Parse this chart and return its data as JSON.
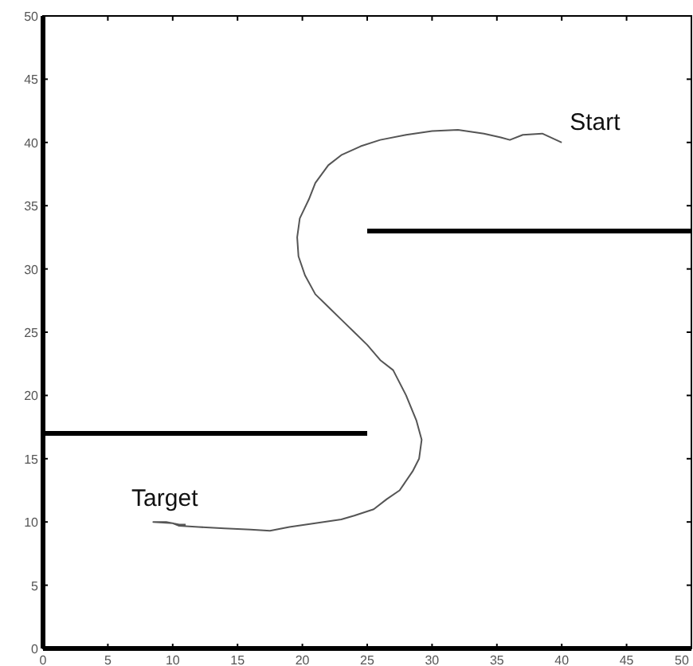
{
  "chart_data": {
    "type": "line",
    "xlim": [
      0,
      50
    ],
    "ylim": [
      0,
      50
    ],
    "xticks": [
      0,
      5,
      10,
      15,
      20,
      25,
      30,
      35,
      40,
      45,
      50
    ],
    "yticks": [
      0,
      5,
      10,
      15,
      20,
      25,
      30,
      35,
      40,
      45,
      50
    ],
    "grid": false,
    "line_style": "solid",
    "series": [
      {
        "color": "#555555",
        "x": [
          40,
          38.5,
          37,
          36,
          35.3,
          34,
          32,
          30,
          28,
          26,
          24.5,
          23,
          22,
          21,
          20.5,
          19.8,
          19.6,
          19.7,
          20.2,
          21,
          22,
          23,
          24,
          25,
          26,
          27,
          28,
          28.8,
          29.2,
          29,
          28.5,
          27.5,
          26.5,
          25.5,
          24,
          23,
          21,
          19,
          17.5,
          16,
          14,
          12,
          10.5,
          10,
          8.5,
          9.5,
          10.5,
          11
        ],
        "values": [
          40,
          40.7,
          40.6,
          40.2,
          40.4,
          40.7,
          41,
          40.9,
          40.6,
          40.2,
          39.7,
          39,
          38.2,
          36.8,
          35.5,
          34,
          32.5,
          31,
          29.5,
          28,
          27,
          26,
          25,
          24,
          22.8,
          22,
          20,
          18,
          16.5,
          15,
          14,
          12.5,
          11.8,
          11,
          10.5,
          10.2,
          9.9,
          9.6,
          9.3,
          9.4,
          9.5,
          9.6,
          9.7,
          9.9,
          10,
          10,
          9.8,
          9.8
        ]
      },
      {
        "color": "#000000",
        "x": [
          0,
          25
        ],
        "values": [
          17,
          17
        ]
      },
      {
        "color": "#000000",
        "x": [
          25,
          50
        ],
        "values": [
          33,
          33
        ]
      }
    ],
    "annotations": [
      {
        "text": "Start",
        "x": 40,
        "y": 40
      },
      {
        "text": "Target",
        "x": 10,
        "y": 10
      }
    ]
  }
}
